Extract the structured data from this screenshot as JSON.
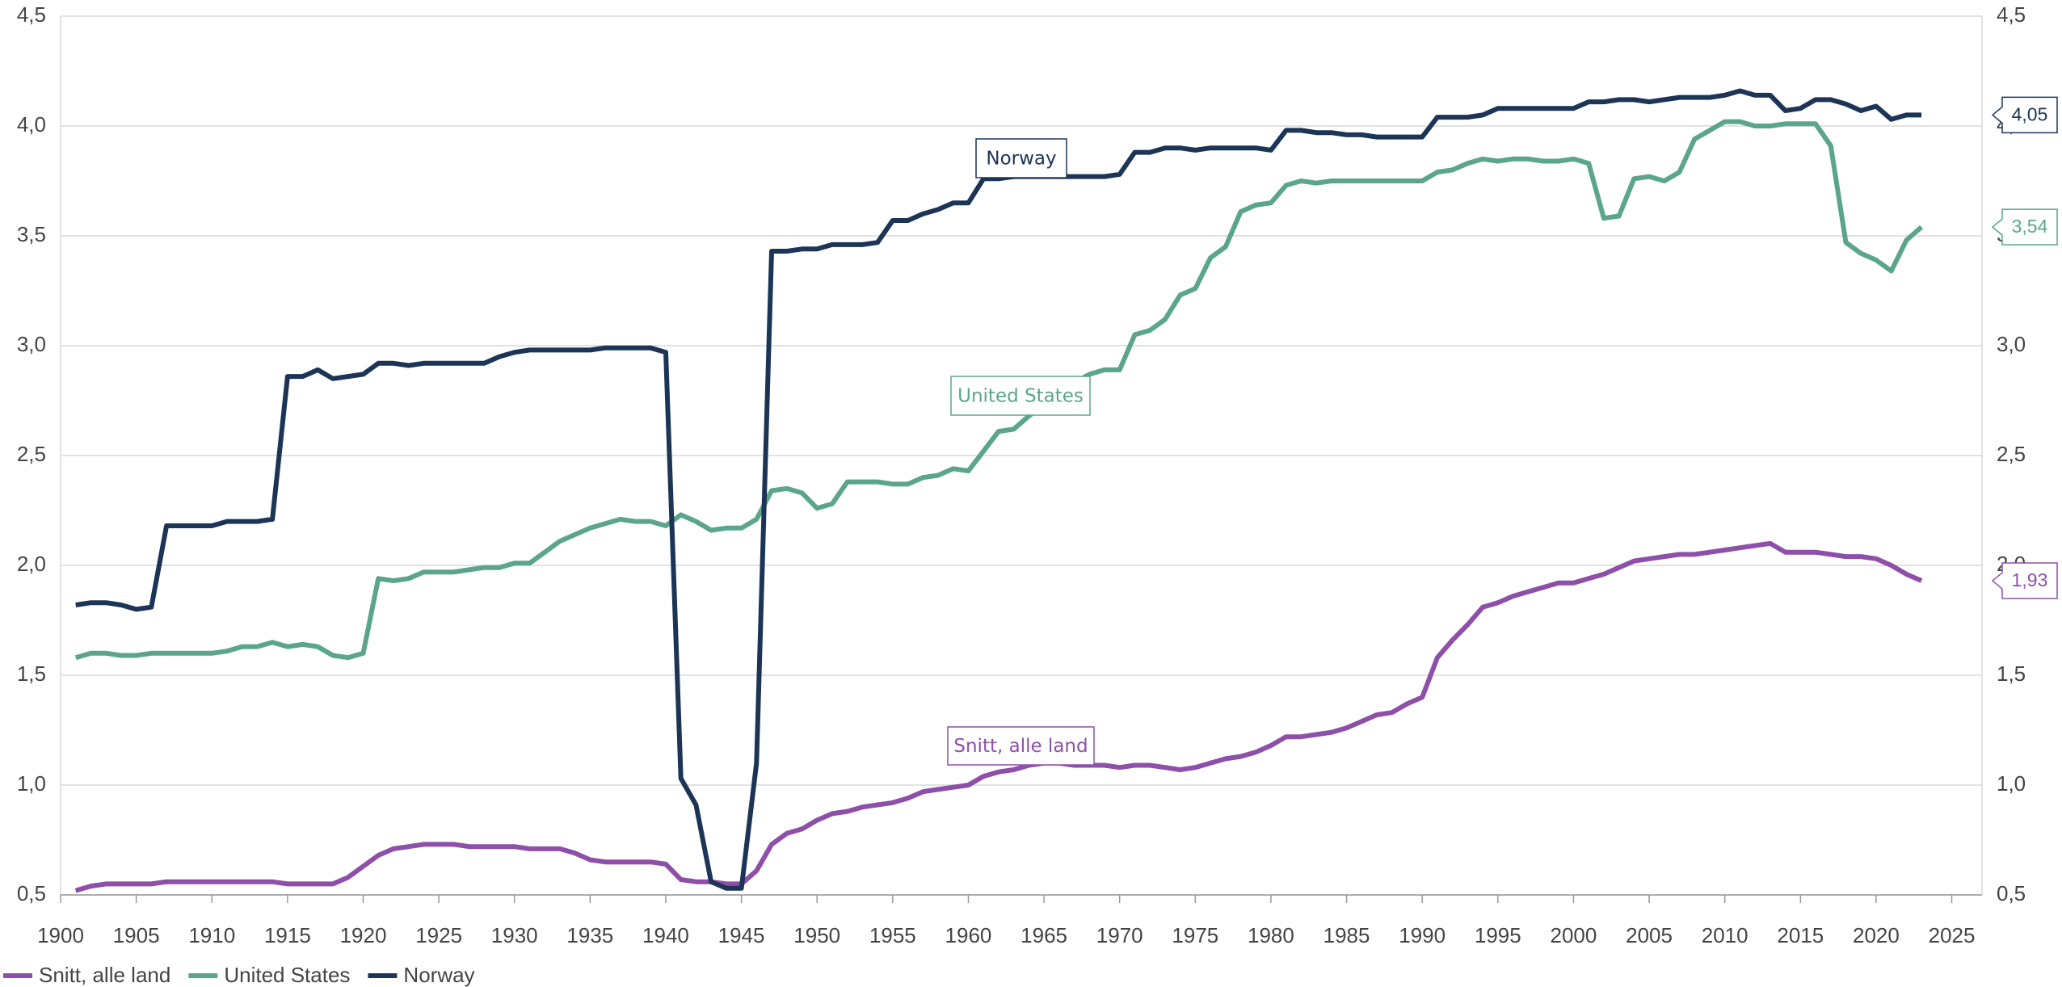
{
  "chart_data": {
    "type": "line",
    "x": [
      1901,
      1902,
      1903,
      1904,
      1905,
      1906,
      1907,
      1908,
      1909,
      1910,
      1911,
      1912,
      1913,
      1914,
      1915,
      1916,
      1917,
      1918,
      1919,
      1920,
      1921,
      1922,
      1923,
      1924,
      1925,
      1926,
      1927,
      1928,
      1929,
      1930,
      1931,
      1932,
      1933,
      1934,
      1935,
      1936,
      1937,
      1938,
      1939,
      1940,
      1941,
      1942,
      1943,
      1944,
      1945,
      1946,
      1947,
      1948,
      1949,
      1950,
      1951,
      1952,
      1953,
      1954,
      1955,
      1956,
      1957,
      1958,
      1959,
      1960,
      1961,
      1962,
      1963,
      1964,
      1965,
      1966,
      1967,
      1968,
      1969,
      1970,
      1971,
      1972,
      1973,
      1974,
      1975,
      1976,
      1977,
      1978,
      1979,
      1980,
      1981,
      1982,
      1983,
      1984,
      1985,
      1986,
      1987,
      1988,
      1989,
      1990,
      1991,
      1992,
      1993,
      1994,
      1995,
      1996,
      1997,
      1998,
      1999,
      2000,
      2001,
      2002,
      2003,
      2004,
      2005,
      2006,
      2007,
      2008,
      2009,
      2010,
      2011,
      2012,
      2013,
      2014,
      2015,
      2016,
      2017,
      2018,
      2019,
      2020,
      2021,
      2022,
      2023
    ],
    "series": [
      {
        "name": "Snitt, alle land",
        "color": "#8e4fa8",
        "values": [
          0.52,
          0.54,
          0.55,
          0.55,
          0.55,
          0.55,
          0.56,
          0.56,
          0.56,
          0.56,
          0.56,
          0.56,
          0.56,
          0.56,
          0.55,
          0.55,
          0.55,
          0.55,
          0.58,
          0.63,
          0.68,
          0.71,
          0.72,
          0.73,
          0.73,
          0.73,
          0.72,
          0.72,
          0.72,
          0.72,
          0.71,
          0.71,
          0.71,
          0.69,
          0.66,
          0.65,
          0.65,
          0.65,
          0.65,
          0.64,
          0.57,
          0.56,
          0.56,
          0.55,
          0.55,
          0.61,
          0.73,
          0.78,
          0.8,
          0.84,
          0.87,
          0.88,
          0.9,
          0.91,
          0.92,
          0.94,
          0.97,
          0.98,
          0.99,
          1.0,
          1.04,
          1.06,
          1.07,
          1.09,
          1.1,
          1.1,
          1.09,
          1.09,
          1.09,
          1.08,
          1.09,
          1.09,
          1.08,
          1.07,
          1.08,
          1.1,
          1.12,
          1.13,
          1.15,
          1.18,
          1.22,
          1.22,
          1.23,
          1.24,
          1.26,
          1.29,
          1.32,
          1.33,
          1.37,
          1.4,
          1.58,
          1.66,
          1.73,
          1.81,
          1.83,
          1.86,
          1.88,
          1.9,
          1.92,
          1.92,
          1.94,
          1.96,
          1.99,
          2.02,
          2.03,
          2.04,
          2.05,
          2.05,
          2.06,
          2.07,
          2.08,
          2.09,
          2.1,
          2.06,
          2.06,
          2.06,
          2.05,
          2.04,
          2.04,
          2.03,
          2.0,
          1.96,
          1.93
        ],
        "value_labels": [
          null,
          null,
          null,
          null,
          null,
          null,
          null,
          null,
          null,
          null,
          null,
          null,
          null,
          null,
          null,
          null,
          null,
          null,
          null,
          null,
          null,
          null,
          null,
          null,
          null,
          null,
          null,
          null,
          null,
          null,
          null,
          null,
          null,
          null,
          null,
          null,
          null,
          null,
          null,
          null,
          null,
          null,
          null,
          null,
          null,
          null,
          null,
          null,
          null,
          null,
          null,
          null,
          null,
          null,
          null,
          null,
          null,
          null,
          null,
          null,
          null,
          null,
          null,
          null,
          null,
          null,
          null,
          null,
          null,
          null,
          null,
          null,
          null,
          null,
          null,
          null,
          null,
          null,
          null,
          null,
          null,
          null,
          null,
          null,
          null,
          null,
          null,
          null,
          null,
          null,
          null,
          null,
          null,
          null,
          null,
          null,
          null,
          null,
          null,
          null,
          null,
          null,
          null,
          null,
          null,
          null,
          null,
          null,
          null,
          null,
          null,
          null,
          null,
          null,
          null,
          null,
          null,
          null,
          null,
          null,
          null,
          null,
          "1,93"
        ]
      },
      {
        "name": "United States",
        "color": "#5aa58c",
        "values": [
          1.58,
          1.6,
          1.6,
          1.59,
          1.59,
          1.6,
          1.6,
          1.6,
          1.6,
          1.6,
          1.61,
          1.63,
          1.63,
          1.65,
          1.63,
          1.64,
          1.63,
          1.59,
          1.58,
          1.6,
          1.94,
          1.93,
          1.94,
          1.97,
          1.97,
          1.97,
          1.98,
          1.99,
          1.99,
          2.01,
          2.01,
          2.06,
          2.11,
          2.14,
          2.17,
          2.19,
          2.21,
          2.2,
          2.2,
          2.18,
          2.23,
          2.2,
          2.16,
          2.17,
          2.17,
          2.21,
          2.34,
          2.35,
          2.33,
          2.26,
          2.28,
          2.38,
          2.38,
          2.38,
          2.37,
          2.37,
          2.4,
          2.41,
          2.44,
          2.43,
          2.52,
          2.61,
          2.62,
          2.68,
          2.73,
          2.77,
          2.83,
          2.87,
          2.89,
          2.89,
          3.05,
          3.07,
          3.12,
          3.23,
          3.26,
          3.4,
          3.45,
          3.61,
          3.64,
          3.65,
          3.73,
          3.75,
          3.74,
          3.75,
          3.75,
          3.75,
          3.75,
          3.75,
          3.75,
          3.75,
          3.79,
          3.8,
          3.83,
          3.85,
          3.84,
          3.85,
          3.85,
          3.84,
          3.84,
          3.85,
          3.83,
          3.58,
          3.59,
          3.76,
          3.77,
          3.75,
          3.79,
          3.94,
          3.98,
          4.02,
          4.02,
          4.0,
          4.0,
          4.01,
          4.01,
          4.01,
          3.91,
          3.47,
          3.42,
          3.39,
          3.34,
          3.48,
          3.54
        ],
        "value_labels": [
          null,
          null,
          null,
          null,
          null,
          null,
          null,
          null,
          null,
          null,
          null,
          null,
          null,
          null,
          null,
          null,
          null,
          null,
          null,
          null,
          null,
          null,
          null,
          null,
          null,
          null,
          null,
          null,
          null,
          null,
          null,
          null,
          null,
          null,
          null,
          null,
          null,
          null,
          null,
          null,
          null,
          null,
          null,
          null,
          null,
          null,
          null,
          null,
          null,
          null,
          null,
          null,
          null,
          null,
          null,
          null,
          null,
          null,
          null,
          null,
          null,
          null,
          null,
          null,
          null,
          null,
          null,
          null,
          null,
          null,
          null,
          null,
          null,
          null,
          null,
          null,
          null,
          null,
          null,
          null,
          null,
          null,
          null,
          null,
          null,
          null,
          null,
          null,
          null,
          null,
          null,
          null,
          null,
          null,
          null,
          null,
          null,
          null,
          null,
          null,
          null,
          null,
          null,
          null,
          null,
          null,
          null,
          null,
          null,
          null,
          null,
          null,
          null,
          null,
          null,
          null,
          null,
          null,
          null,
          null,
          null,
          null,
          "3,54"
        ]
      },
      {
        "name": "Norway",
        "color": "#1c3557",
        "values": [
          1.82,
          1.83,
          1.83,
          1.82,
          1.8,
          1.81,
          2.18,
          2.18,
          2.18,
          2.18,
          2.2,
          2.2,
          2.2,
          2.21,
          2.86,
          2.86,
          2.89,
          2.85,
          2.86,
          2.87,
          2.92,
          2.92,
          2.91,
          2.92,
          2.92,
          2.92,
          2.92,
          2.92,
          2.95,
          2.97,
          2.98,
          2.98,
          2.98,
          2.98,
          2.98,
          2.99,
          2.99,
          2.99,
          2.99,
          2.97,
          1.03,
          0.91,
          0.56,
          0.53,
          0.53,
          1.1,
          3.43,
          3.43,
          3.44,
          3.44,
          3.46,
          3.46,
          3.46,
          3.47,
          3.57,
          3.57,
          3.6,
          3.62,
          3.65,
          3.65,
          3.76,
          3.76,
          3.77,
          3.77,
          3.77,
          3.77,
          3.77,
          3.77,
          3.77,
          3.78,
          3.88,
          3.88,
          3.9,
          3.9,
          3.89,
          3.9,
          3.9,
          3.9,
          3.9,
          3.89,
          3.98,
          3.98,
          3.97,
          3.97,
          3.96,
          3.96,
          3.95,
          3.95,
          3.95,
          3.95,
          4.04,
          4.04,
          4.04,
          4.05,
          4.08,
          4.08,
          4.08,
          4.08,
          4.08,
          4.08,
          4.11,
          4.11,
          4.12,
          4.12,
          4.11,
          4.12,
          4.13,
          4.13,
          4.13,
          4.14,
          4.16,
          4.14,
          4.14,
          4.07,
          4.08,
          4.12,
          4.12,
          4.1,
          4.07,
          4.09,
          4.03,
          4.05,
          4.05
        ],
        "value_labels": [
          null,
          null,
          null,
          null,
          null,
          null,
          null,
          null,
          null,
          null,
          null,
          null,
          null,
          null,
          null,
          null,
          null,
          null,
          null,
          null,
          null,
          null,
          null,
          null,
          null,
          null,
          null,
          null,
          null,
          null,
          null,
          null,
          null,
          null,
          null,
          null,
          null,
          null,
          null,
          null,
          null,
          null,
          null,
          null,
          null,
          null,
          null,
          null,
          null,
          null,
          null,
          null,
          null,
          null,
          null,
          null,
          null,
          null,
          null,
          null,
          null,
          null,
          null,
          null,
          null,
          null,
          null,
          null,
          null,
          null,
          null,
          null,
          null,
          null,
          null,
          null,
          null,
          null,
          null,
          null,
          null,
          null,
          null,
          null,
          null,
          null,
          null,
          null,
          null,
          null,
          null,
          null,
          null,
          null,
          null,
          null,
          null,
          null,
          null,
          null,
          null,
          null,
          null,
          null,
          null,
          null,
          null,
          null,
          null,
          null,
          null,
          null,
          null,
          null,
          null,
          null,
          null,
          null,
          null,
          null,
          null,
          null,
          "4,05"
        ]
      }
    ],
    "xlim": [
      1900,
      2027
    ],
    "xticks": [
      1900,
      1905,
      1910,
      1915,
      1920,
      1925,
      1930,
      1935,
      1940,
      1945,
      1950,
      1955,
      1960,
      1965,
      1970,
      1975,
      1980,
      1985,
      1990,
      1995,
      2000,
      2005,
      2010,
      2015,
      2020,
      2025
    ],
    "ylim": [
      0.5,
      4.5
    ],
    "yticks": [
      {
        "value": 0.5,
        "label": "0,5"
      },
      {
        "value": 1,
        "label": "1,0"
      },
      {
        "value": 1.5,
        "label": "1,5"
      },
      {
        "value": 2,
        "label": "2,0"
      },
      {
        "value": 2.5,
        "label": "2,5"
      },
      {
        "value": 3,
        "label": "3,0"
      },
      {
        "value": 3.5,
        "label": "3,5"
      },
      {
        "value": 4,
        "label": "4,0"
      },
      {
        "value": 4.5,
        "label": "4,5"
      }
    ],
    "y2lim": [
      0.5,
      4.5
    ],
    "y2ticks": [
      {
        "value": 0.5,
        "label": "0,5"
      },
      {
        "value": 1,
        "label": "1,0"
      },
      {
        "value": 1.5,
        "label": "1,5"
      },
      {
        "value": 2,
        "label": "2,0"
      },
      {
        "value": 2.5,
        "label": "2,5"
      },
      {
        "value": 3,
        "label": "3,0"
      },
      {
        "value": 3.5,
        "label": "3,5"
      },
      {
        "value": 4,
        "label": "4,0"
      },
      {
        "value": 4.5,
        "label": "4,5"
      }
    ],
    "grid": true,
    "legend": "bottom-left"
  }
}
